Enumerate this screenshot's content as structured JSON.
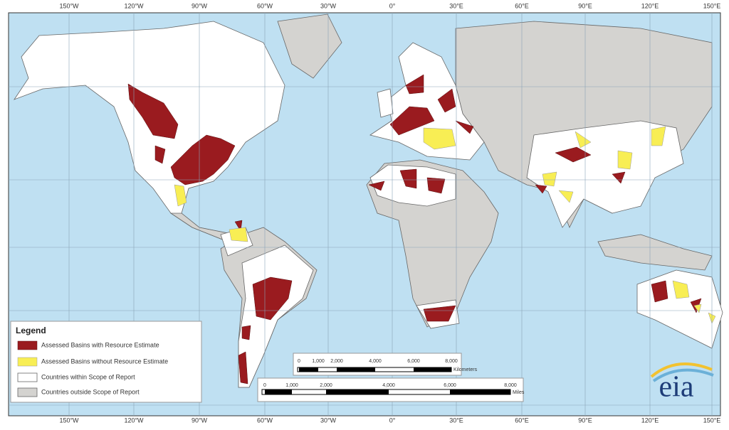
{
  "map": {
    "longitude_labels": [
      "150°W",
      "120°W",
      "90°W",
      "60°W",
      "30°W",
      "0°",
      "30°E",
      "60°E",
      "90°E",
      "120°E",
      "150°E"
    ]
  },
  "legend": {
    "title": "Legend",
    "items": [
      "Assessed Basins with Resource Estimate",
      "Assessed Basins without Resource Estimate",
      "Countries within Scope of Report",
      "Countries outside Scope of Report"
    ]
  },
  "scale_km": {
    "ticks": [
      "0",
      "1,000",
      "2,000",
      "4,000",
      "6,000",
      "8,000"
    ],
    "unit": "Kilometers"
  },
  "scale_miles": {
    "ticks": [
      "0",
      "1,000",
      "2,000",
      "4,000",
      "6,000",
      "8,000"
    ],
    "unit": "Miles"
  },
  "logo": "eia"
}
